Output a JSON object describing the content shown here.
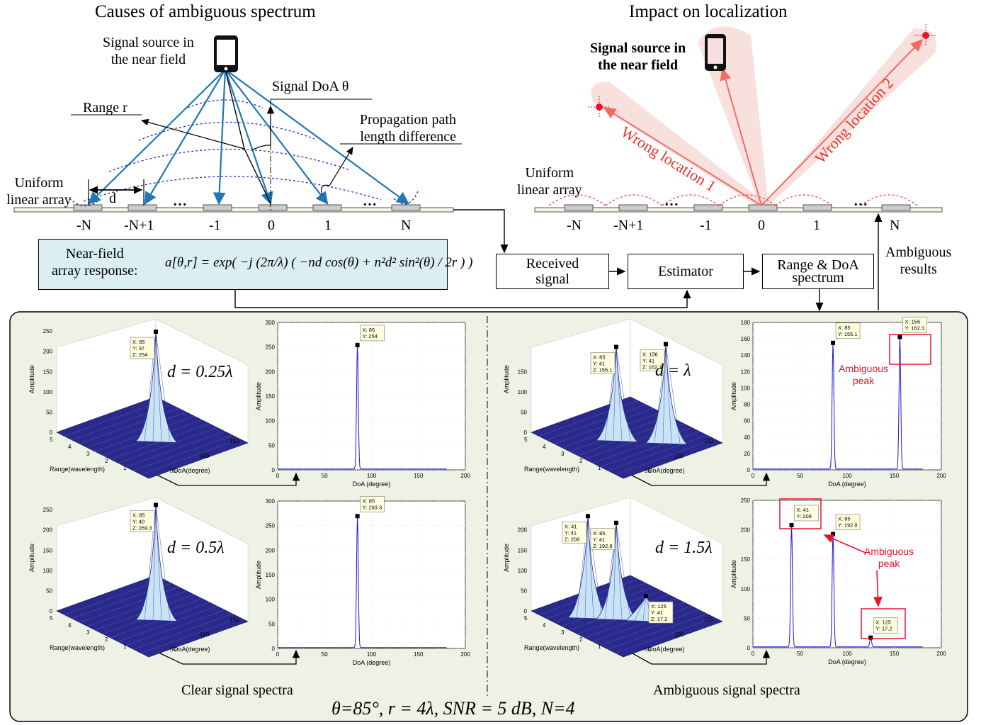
{
  "left": {
    "title": "Causes of ambiguous spectrum",
    "source_label_1": "Signal source in",
    "source_label_2": "the near field",
    "doa_label": "Signal DoA θ",
    "range_label": "Range r",
    "path_label_1": "Propagation path",
    "path_label_2": "length difference",
    "array_label_1": "Uniform",
    "array_label_2": "linear array",
    "d_label": "d",
    "indices": [
      "-N",
      "-N+1",
      "-1",
      "0",
      "1",
      "N"
    ],
    "dots": "…"
  },
  "right": {
    "title": "Impact on localization",
    "source_label_1": "Signal source in",
    "source_label_2": "the near field",
    "wrong1": "Wrong location 1",
    "wrong2": "Wrong location 2",
    "array_label_1": "Uniform",
    "array_label_2": "linear array",
    "indices": [
      "-N",
      "-N+1",
      "-1",
      "0",
      "1",
      "N"
    ],
    "dots": "…",
    "ambiguous_1": "Ambiguous",
    "ambiguous_2": "results"
  },
  "formula": {
    "prefix_1": "Near-field",
    "prefix_2": "array response:",
    "expr": "a[θ,r] = exp( −j (2π/λ) ( −nd cos(θ) + n²d² sin²(θ) / 2r ) )"
  },
  "flow": {
    "received_1": "Received",
    "received_2": "signal",
    "estimator": "Estimator",
    "spectrum_1": "Range & DoA",
    "spectrum_2": "spectrum"
  },
  "panel": {
    "clear_caption": "Clear signal spectra",
    "ambiguous_caption": "Ambiguous signal spectra",
    "params": "θ=85°,  r = 4λ,  SNR = 5 dB, N=4",
    "ambiguous_peak_1": "Ambiguous",
    "ambiguous_peak_2": "peak"
  },
  "plots": {
    "amplitude": "Amplitude",
    "range_axis": "Range(wavelength)",
    "doa_axis_3d": "DoA(degree)",
    "doa_axis_2d": "DoA (degree)",
    "doa_axis_2d_cut": "DoA (degree)",
    "d_values": [
      "d = 0.25λ",
      "d = 0.5λ",
      "d = λ",
      "d = 1.5λ"
    ],
    "tip3d_a": [
      "X: 85",
      "Y: 37",
      "Z: 254"
    ],
    "tip3d_b": [
      "X: 85",
      "Y: 40",
      "Z: 269.3"
    ],
    "tip3d_c1": [
      "X: 85",
      "Y: 41",
      "Z: 155.1"
    ],
    "tip3d_c2": [
      "X: 156",
      "Y: 41",
      "Z: 162.3"
    ],
    "tip3d_d1": [
      "X: 41",
      "Y: 41",
      "Z: 208"
    ],
    "tip3d_d2": [
      "X: 85",
      "Y: 41",
      "Z: 192.8"
    ],
    "tip3d_d3": [
      "X: 125",
      "Y: 41",
      "Z: 17.2"
    ],
    "tip2d_a": [
      "X: 85",
      "Y: 254"
    ],
    "tip2d_b": [
      "X: 85",
      "Y: 269.3"
    ],
    "tip2d_c1": [
      "X: 85",
      "Y: 155.1"
    ],
    "tip2d_c2": [
      "X: 156",
      "Y: 162.3"
    ],
    "tip2d_d1": [
      "X: 41",
      "Y: 208"
    ],
    "tip2d_d2": [
      "X: 85",
      "Y: 192.8"
    ],
    "tip2d_d3": [
      "X: 125",
      "Y: 17.2"
    ]
  },
  "chart_data": [
    {
      "type": "line",
      "xlabel": "DoA (degree)",
      "ylabel": "Amplitude",
      "xlim": [
        0,
        200
      ],
      "ylim": [
        0,
        300
      ],
      "x_ticks": [
        0,
        50,
        100,
        150,
        200
      ],
      "y_ticks": [
        0,
        50,
        100,
        150,
        200,
        250,
        300
      ],
      "series": [
        {
          "peaks": [
            {
              "x": 85,
              "y": 254
            }
          ]
        }
      ]
    },
    {
      "type": "line",
      "xlabel": "DoA (degree)",
      "ylabel": "Amplitude",
      "xlim": [
        0,
        200
      ],
      "ylim": [
        0,
        300
      ],
      "x_ticks": [
        0,
        50,
        100,
        150,
        200
      ],
      "y_ticks": [
        0,
        50,
        100,
        150,
        200,
        250,
        300
      ],
      "series": [
        {
          "peaks": [
            {
              "x": 85,
              "y": 269.3
            }
          ]
        }
      ]
    },
    {
      "type": "line",
      "xlabel": "DoA (degree)",
      "ylabel": "Amplitude",
      "xlim": [
        0,
        200
      ],
      "ylim": [
        0,
        180
      ],
      "x_ticks": [
        0,
        50,
        100,
        150,
        200
      ],
      "y_ticks": [
        0,
        20,
        40,
        60,
        80,
        100,
        120,
        140,
        160,
        180
      ],
      "series": [
        {
          "peaks": [
            {
              "x": 85,
              "y": 155.1
            },
            {
              "x": 156,
              "y": 162.3
            }
          ]
        }
      ]
    },
    {
      "type": "line",
      "xlabel": "DoA (degree)",
      "ylabel": "Amplitude",
      "xlim": [
        0,
        200
      ],
      "ylim": [
        0,
        250
      ],
      "x_ticks": [
        0,
        50,
        100,
        150,
        200
      ],
      "y_ticks": [
        0,
        50,
        100,
        150,
        200,
        250
      ],
      "series": [
        {
          "peaks": [
            {
              "x": 41,
              "y": 208
            },
            {
              "x": 85,
              "y": 192.8
            },
            {
              "x": 125,
              "y": 17.2
            }
          ]
        }
      ]
    }
  ],
  "colors": {
    "array_blue": "#1f77b4",
    "wave_red": "#e8332e",
    "panel_bg": "#eef2e4",
    "formula_bg": "#dbeef4",
    "curve": "#1a1acc"
  }
}
